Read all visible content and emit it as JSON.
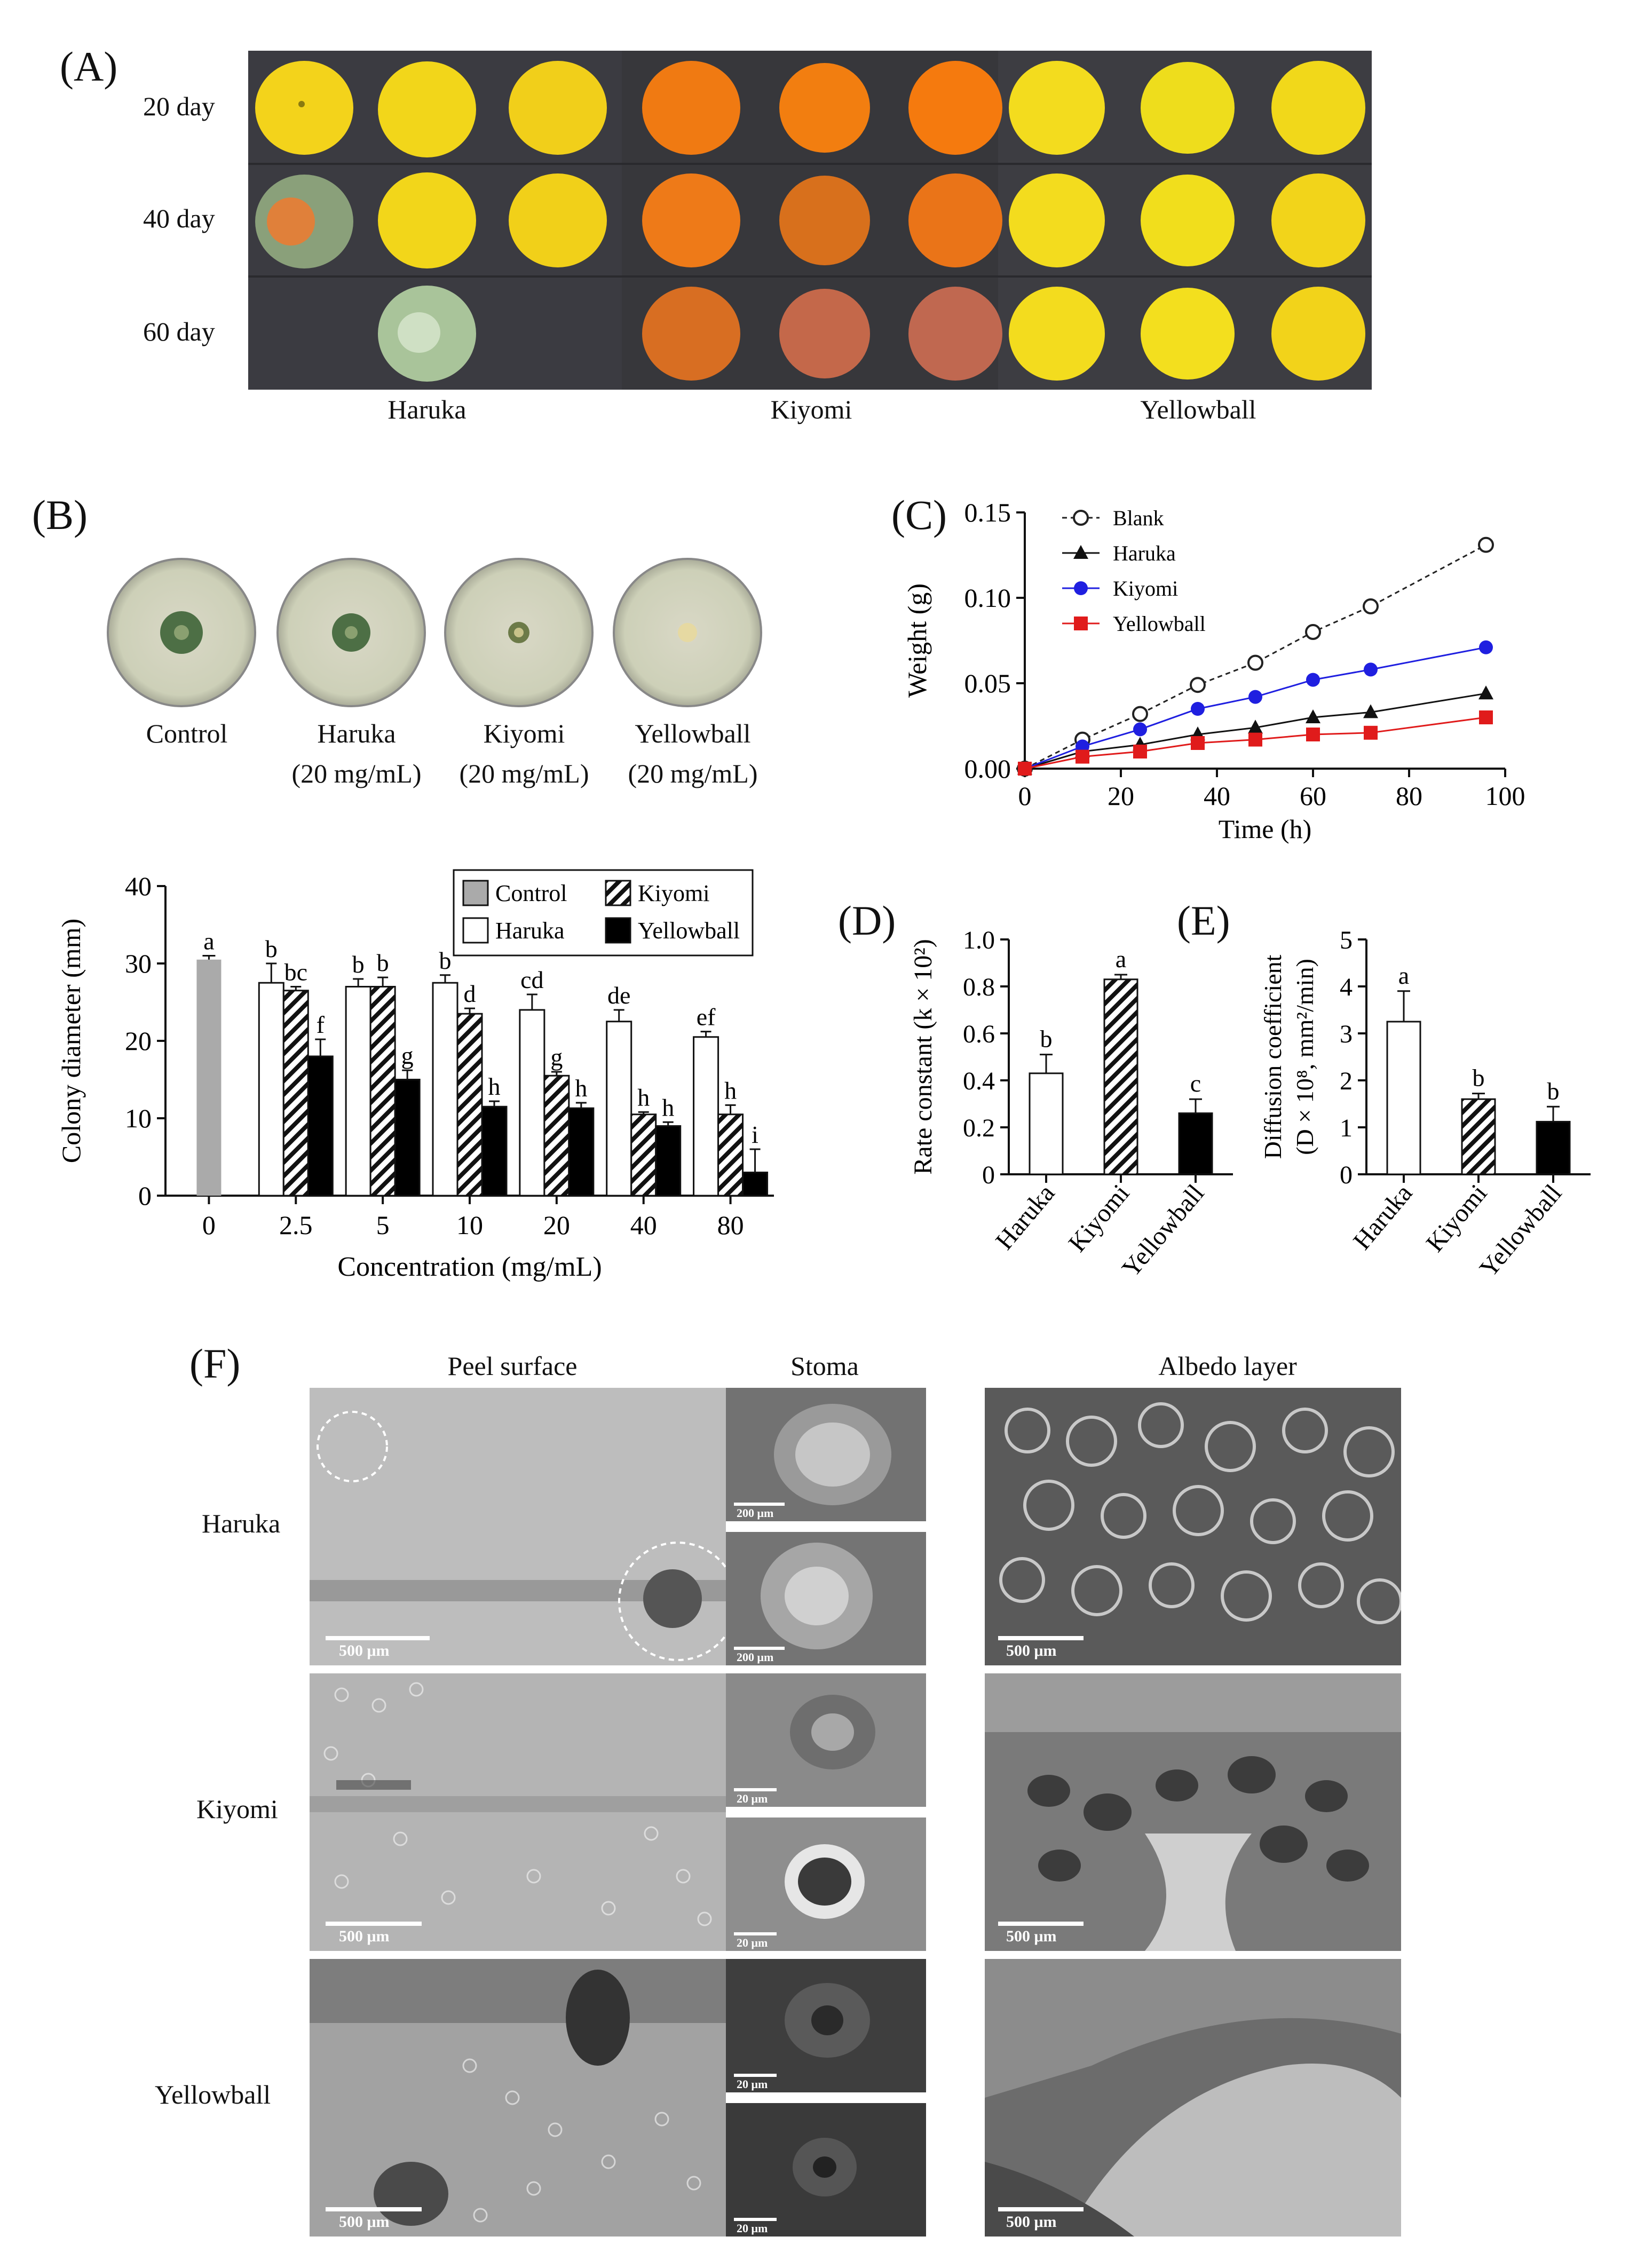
{
  "panelA": {
    "label": "(A)",
    "rows": [
      "20 day",
      "40 day",
      "60 day"
    ],
    "groups": [
      "Haruka",
      "Kiyomi",
      "Yellowball"
    ],
    "colors": {
      "haruka": "#f2d21a",
      "kiyomi": "#f07a12",
      "yellowball": "#f3dc1e",
      "background": "#3b3b40"
    }
  },
  "panelB": {
    "label": "(B)",
    "dishes": [
      {
        "name": "Control",
        "sub": ""
      },
      {
        "name": "Haruka",
        "sub": "(20 mg/mL)"
      },
      {
        "name": "Kiyomi",
        "sub": "(20 mg/mL)"
      },
      {
        "name": "Yellowball",
        "sub": "(20 mg/mL)"
      }
    ]
  },
  "panelC": {
    "label": "(C)"
  },
  "panelD": {
    "label": "(D)"
  },
  "panelE": {
    "label": "(E)"
  },
  "panelF": {
    "label": "(F)",
    "headers": [
      "Peel surface",
      "Stoma",
      "Albedo layer"
    ],
    "rows": [
      "Haruka",
      "Kiyomi",
      "Yellowball"
    ],
    "scale_peel": "500 μm",
    "scale_albedo": "500 μm",
    "scale_stoma": [
      "200 μm",
      "200 μm",
      "20 μm",
      "20 μm",
      "20 μm",
      "20 μm"
    ]
  },
  "chart_data": [
    {
      "id": "B-bar",
      "type": "bar",
      "xlabel": "Concentration (mg/mL)",
      "ylabel": "Colony diameter (mm)",
      "ylim": [
        0,
        40
      ],
      "yticks": [
        0,
        10,
        20,
        30,
        40
      ],
      "categories": [
        "0",
        "2.5",
        "5",
        "10",
        "20",
        "40",
        "80"
      ],
      "legend": [
        "Control",
        "Kiyomi",
        "Haruka",
        "Yellowball"
      ],
      "control": {
        "name": "Control",
        "value": 30.5,
        "error": 0.5,
        "letter": "a"
      },
      "series": [
        {
          "name": "Haruka",
          "values": [
            null,
            27.5,
            27.0,
            27.5,
            24.0,
            22.5,
            20.5
          ],
          "errors": [
            null,
            2.5,
            1.0,
            1.0,
            2.0,
            1.5,
            0.7
          ],
          "letters": [
            null,
            "b",
            "b",
            "b",
            "cd",
            "de",
            "ef"
          ]
        },
        {
          "name": "Kiyomi",
          "values": [
            null,
            26.5,
            27.0,
            23.5,
            15.5,
            10.5,
            10.5
          ],
          "errors": [
            null,
            0.5,
            1.2,
            0.7,
            0.5,
            0.3,
            1.2
          ],
          "letters": [
            null,
            "bc",
            "b",
            "d",
            "g",
            "h",
            "h"
          ]
        },
        {
          "name": "Yellowball",
          "values": [
            null,
            18.0,
            15.0,
            11.5,
            11.3,
            9.0,
            3.0
          ],
          "errors": [
            null,
            2.2,
            1.2,
            0.7,
            0.7,
            0.5,
            3.0
          ],
          "letters": [
            null,
            "f",
            "g",
            "h",
            "h",
            "h",
            "i"
          ]
        }
      ]
    },
    {
      "id": "C-line",
      "type": "line",
      "xlabel": "Time (h)",
      "ylabel": "Weight (g)",
      "xlim": [
        0,
        100
      ],
      "ylim": [
        0,
        0.15
      ],
      "xticks": [
        0,
        20,
        40,
        60,
        80,
        100
      ],
      "yticks": [
        "0.00",
        "0.05",
        "0.10",
        "0.15"
      ],
      "x": [
        0,
        12,
        24,
        36,
        48,
        60,
        72,
        96
      ],
      "series": [
        {
          "name": "Blank",
          "color": "#222222",
          "values": [
            0.0,
            0.017,
            0.032,
            0.049,
            0.062,
            0.08,
            0.095,
            0.131
          ]
        },
        {
          "name": "Haruka",
          "color": "#111111",
          "values": [
            0.0,
            0.01,
            0.014,
            0.02,
            0.024,
            0.03,
            0.033,
            0.044
          ]
        },
        {
          "name": "Kiyomi",
          "color": "#1f1fe0",
          "values": [
            0.0,
            0.013,
            0.023,
            0.035,
            0.042,
            0.052,
            0.058,
            0.071
          ]
        },
        {
          "name": "Yellowball",
          "color": "#e01b1b",
          "values": [
            0.0,
            0.007,
            0.01,
            0.015,
            0.017,
            0.02,
            0.021,
            0.03
          ]
        }
      ]
    },
    {
      "id": "D-bar",
      "type": "bar",
      "ylabel": "Rate constant (k × 10²)",
      "ylim": [
        0,
        1.0
      ],
      "yticks": [
        "0",
        "0.2",
        "0.4",
        "0.6",
        "0.8",
        "1.0"
      ],
      "categories": [
        "Haruka",
        "Kiyomi",
        "Yellowball"
      ],
      "values": [
        0.43,
        0.83,
        0.26
      ],
      "errors": [
        0.08,
        0.02,
        0.06
      ],
      "letters": [
        "b",
        "a",
        "c"
      ]
    },
    {
      "id": "E-bar",
      "type": "bar",
      "ylabel": "Diffusion coefficient",
      "ylabel2": "(D × 10⁸, mm²/min)",
      "ylim": [
        0,
        5
      ],
      "yticks": [
        "0",
        "1",
        "2",
        "3",
        "4",
        "5"
      ],
      "categories": [
        "Haruka",
        "Kiyomi",
        "Yellowball"
      ],
      "values": [
        3.25,
        1.6,
        1.12
      ],
      "errors": [
        0.65,
        0.12,
        0.32
      ],
      "letters": [
        "a",
        "b",
        "b"
      ]
    }
  ]
}
